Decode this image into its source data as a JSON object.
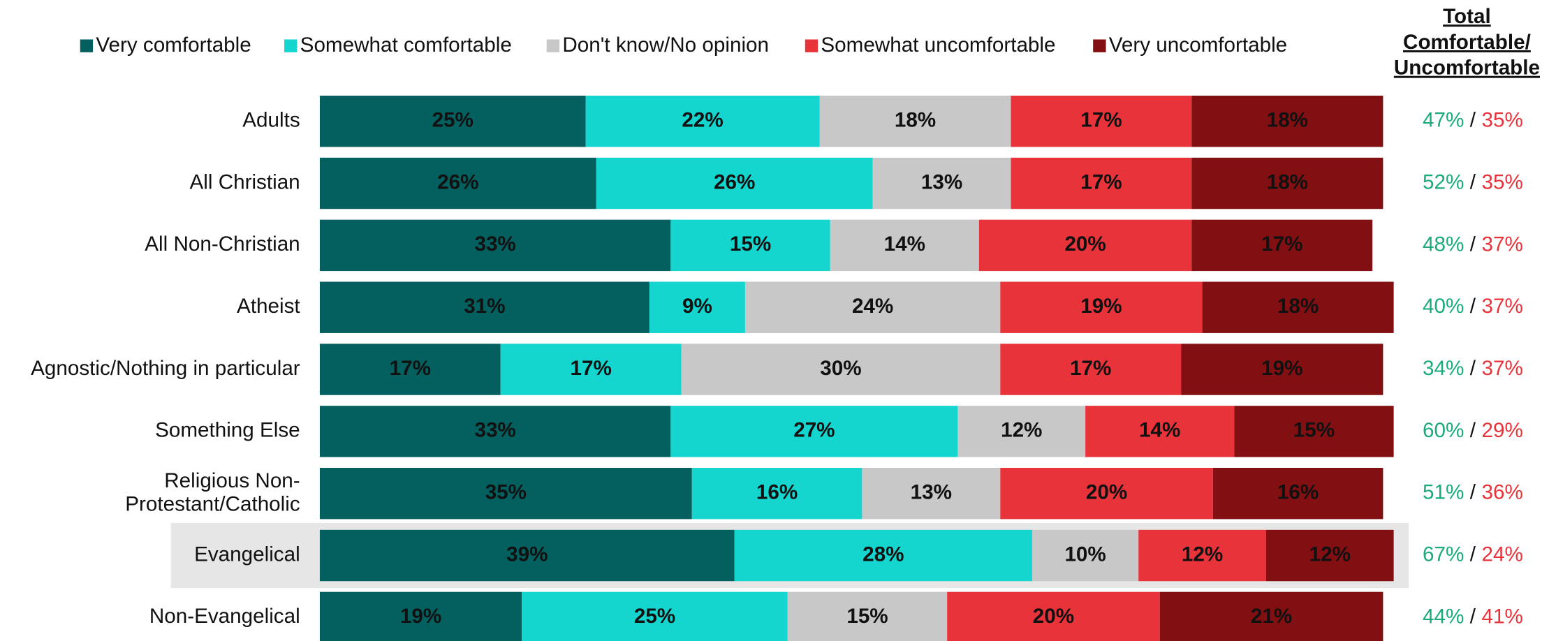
{
  "chart_data": {
    "type": "stacked_bar_horizontal",
    "categories": [
      "Adults",
      "All Christian",
      "All Non-Christian",
      "Atheist",
      "Agnostic/Nothing in particular",
      "Something Else",
      "Religious Non-\nProtestant/Catholic",
      "Evangelical",
      "Non-Evangelical"
    ],
    "highlight": 7,
    "xlim": [
      0,
      100
    ],
    "legend": "top",
    "series": [
      {
        "name": "Very comfortable",
        "color": "#045f5f",
        "label_color": "#ffffff",
        "values": [
          25,
          26,
          33,
          31,
          17,
          33,
          35,
          39,
          19
        ],
        "value_labels": [
          "25%",
          "26%",
          "33%",
          "31%",
          "17%",
          "33%",
          "35%",
          "39%",
          "19%"
        ]
      },
      {
        "name": "Somewhat comfortable",
        "color": "#14d6cf",
        "label_color": "#111111",
        "values": [
          22,
          26,
          15,
          9,
          17,
          27,
          16,
          28,
          25
        ],
        "value_labels": [
          "22%",
          "26%",
          "15%",
          "9%",
          "17%",
          "27%",
          "16%",
          "28%",
          "25%"
        ]
      },
      {
        "name": "Don't know/No opinion",
        "color": "#c8c8c8",
        "label_color": "#111111",
        "values": [
          18,
          13,
          14,
          24,
          30,
          12,
          13,
          10,
          15
        ],
        "value_labels": [
          "18%",
          "13%",
          "14%",
          "24%",
          "30%",
          "12%",
          "13%",
          "10%",
          "15%"
        ]
      },
      {
        "name": "Somewhat uncomfortable",
        "color": "#e8333b",
        "label_color": "#ffffff",
        "values": [
          17,
          17,
          20,
          19,
          17,
          14,
          20,
          12,
          20
        ],
        "value_labels": [
          "17%",
          "17%",
          "20%",
          "19%",
          "17%",
          "14%",
          "20%",
          "12%",
          "20%"
        ]
      },
      {
        "name": "Very uncomfortable",
        "color": "#820f12",
        "label_color": "#ffffff",
        "values": [
          18,
          18,
          17,
          18,
          19,
          15,
          16,
          12,
          21
        ],
        "value_labels": [
          "18%",
          "18%",
          "17%",
          "18%",
          "19%",
          "15%",
          "16%",
          "12%",
          "21%"
        ]
      }
    ],
    "total_header": [
      "Total",
      "Comfortable/",
      "Uncomfortable"
    ],
    "total_separator": "/",
    "totals": [
      {
        "name": "Comfortable",
        "color": "#1aab7c",
        "values": [
          47,
          52,
          48,
          40,
          34,
          60,
          51,
          67,
          44
        ],
        "value_labels": [
          "47%",
          "52%",
          "48%",
          "40%",
          "34%",
          "60%",
          "51%",
          "67%",
          "44%"
        ]
      },
      {
        "name": "Uncomfortable",
        "color": "#e8333b",
        "values": [
          35,
          35,
          37,
          37,
          37,
          29,
          36,
          24,
          41
        ],
        "value_labels": [
          "35%",
          "35%",
          "37%",
          "37%",
          "37%",
          "29%",
          "36%",
          "24%",
          "41%"
        ]
      }
    ]
  }
}
